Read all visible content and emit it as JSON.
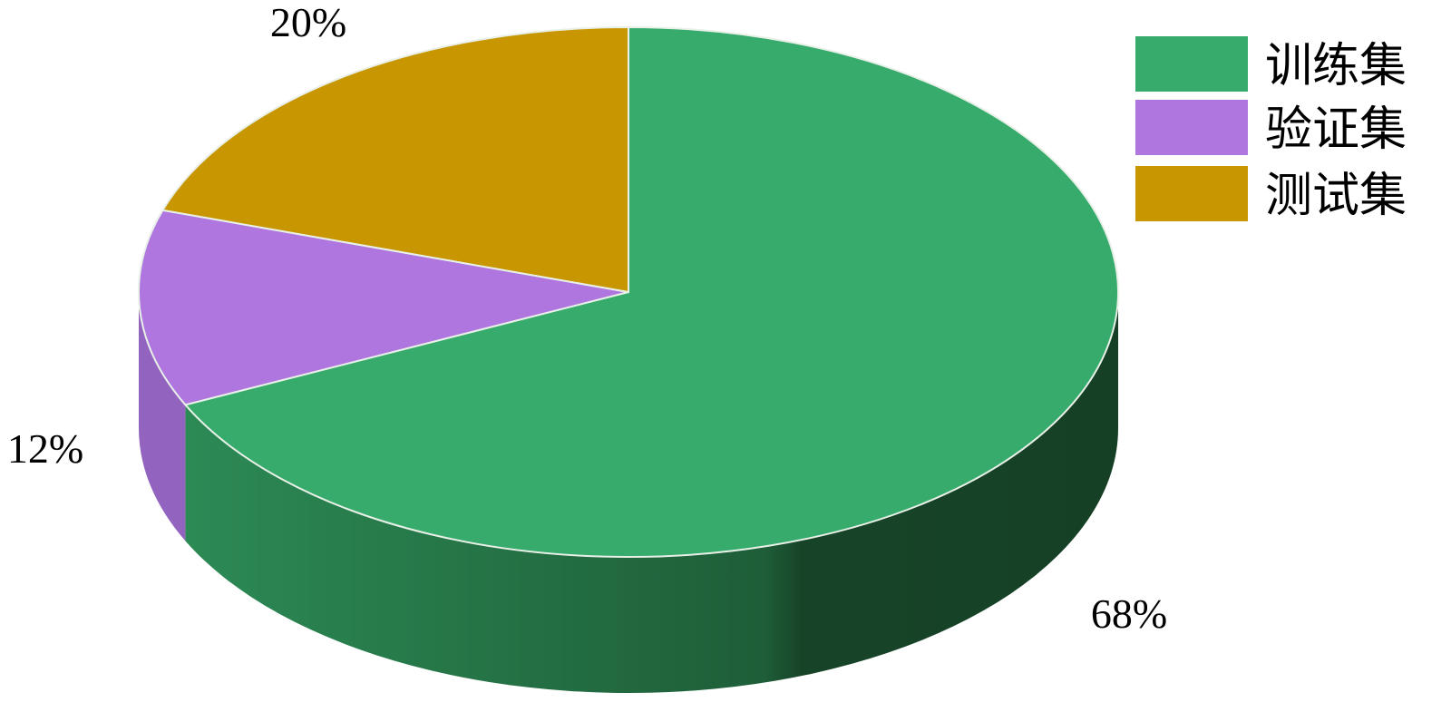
{
  "chart_data": {
    "type": "pie",
    "style": "3d",
    "start_angle": "top, clockwise",
    "legend_position": "top-right",
    "categories": [
      "训练集",
      "验证集",
      "测试集"
    ],
    "values": [
      68,
      12,
      20
    ],
    "data_labels": [
      "68%",
      "12%",
      "20%"
    ],
    "colors": [
      "#36AB6B",
      "#AE76DE",
      "#C89600"
    ],
    "side_colors": [
      [
        "#2C8A55",
        "#164026"
      ],
      [
        "#9363C0",
        "#8A5AB4"
      ],
      [
        "#A07800",
        "#A07800"
      ]
    ]
  }
}
